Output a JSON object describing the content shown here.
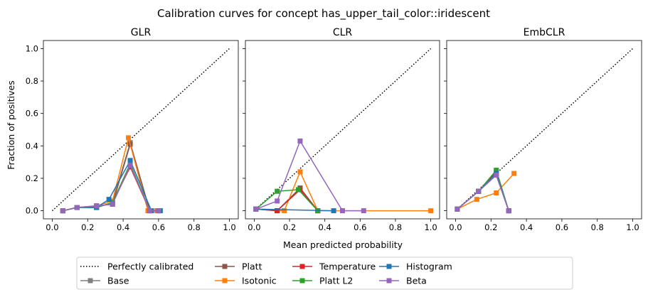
{
  "figure": {
    "title": "Calibration curves for concept has_upper_tail_color::iridescent",
    "xlabel": "Mean predicted probability",
    "ylabel": "Fraction of positives"
  },
  "legend": {
    "placement": "bottom-center",
    "entries": [
      {
        "name": "Perfectly calibrated",
        "color": "#000000",
        "style": "dotted",
        "marker": "none"
      },
      {
        "name": "Base",
        "color": "#7f7f7f",
        "style": "solid",
        "marker": "square"
      },
      {
        "name": "Platt",
        "color": "#8c564b",
        "style": "solid",
        "marker": "square"
      },
      {
        "name": "Isotonic",
        "color": "#ff7f0e",
        "style": "solid",
        "marker": "square"
      },
      {
        "name": "Temperature",
        "color": "#d62728",
        "style": "solid",
        "marker": "square"
      },
      {
        "name": "Platt L2",
        "color": "#2ca02c",
        "style": "solid",
        "marker": "square"
      },
      {
        "name": "Histogram",
        "color": "#1f77b4",
        "style": "solid",
        "marker": "square"
      },
      {
        "name": "Beta",
        "color": "#9467bd",
        "style": "solid",
        "marker": "square"
      }
    ]
  },
  "chart_data": [
    {
      "type": "line",
      "title": "GLR",
      "xlim": [
        -0.05,
        1.05
      ],
      "ylim": [
        -0.05,
        1.05
      ],
      "xticks": [
        "0.0",
        "0.2",
        "0.4",
        "0.6",
        "0.8",
        "1.0"
      ],
      "yticks": [
        "0.0",
        "0.2",
        "0.4",
        "0.6",
        "0.8",
        "1.0"
      ],
      "grid": false,
      "series": [
        {
          "name": "Perfectly calibrated",
          "x": [
            0,
            1
          ],
          "y": [
            0,
            1
          ]
        },
        {
          "name": "Base",
          "x": [
            0.06,
            0.14,
            0.25,
            0.34,
            0.44,
            0.55,
            0.6
          ],
          "y": [
            0.0,
            0.02,
            0.02,
            0.05,
            0.42,
            0.0,
            0.0
          ]
        },
        {
          "name": "Platt",
          "x": [
            0.06,
            0.14,
            0.25,
            0.34,
            0.44,
            0.55,
            0.6
          ],
          "y": [
            0.0,
            0.02,
            0.03,
            0.04,
            0.41,
            0.0,
            0.0
          ]
        },
        {
          "name": "Isotonic",
          "x": [
            0.06,
            0.14,
            0.25,
            0.34,
            0.43,
            0.54,
            0.59
          ],
          "y": [
            0.0,
            0.02,
            0.03,
            0.06,
            0.45,
            0.0,
            0.0
          ]
        },
        {
          "name": "Temperature",
          "x": [
            0.06,
            0.14,
            0.25,
            0.34,
            0.44,
            0.55,
            0.6
          ],
          "y": [
            0.0,
            0.02,
            0.02,
            0.05,
            0.27,
            0.0,
            0.0
          ]
        },
        {
          "name": "Platt L2",
          "x": [
            0.06,
            0.14,
            0.25,
            0.34,
            0.44,
            0.55,
            0.6
          ],
          "y": [
            0.0,
            0.02,
            0.02,
            0.05,
            0.29,
            0.0,
            0.0
          ]
        },
        {
          "name": "Histogram",
          "x": [
            0.06,
            0.14,
            0.25,
            0.32,
            0.44,
            0.56,
            0.61
          ],
          "y": [
            0.0,
            0.02,
            0.02,
            0.07,
            0.31,
            0.0,
            0.0
          ]
        },
        {
          "name": "Beta",
          "x": [
            0.06,
            0.14,
            0.25,
            0.34,
            0.44,
            0.55,
            0.6
          ],
          "y": [
            0.0,
            0.02,
            0.03,
            0.04,
            0.28,
            0.0,
            0.0
          ]
        }
      ]
    },
    {
      "type": "line",
      "title": "CLR",
      "xlim": [
        -0.05,
        1.05
      ],
      "ylim": [
        -0.05,
        1.05
      ],
      "xticks": [
        "0.0",
        "0.2",
        "0.4",
        "0.6",
        "0.8",
        "1.0"
      ],
      "yticks": [],
      "grid": false,
      "series": [
        {
          "name": "Perfectly calibrated",
          "x": [
            0,
            1
          ],
          "y": [
            0,
            1
          ]
        },
        {
          "name": "Base",
          "x": [
            0.01,
            0.13,
            0.26,
            0.36
          ],
          "y": [
            0.01,
            0.0,
            0.14,
            0.0
          ]
        },
        {
          "name": "Platt",
          "x": [
            0.01,
            0.13,
            0.26,
            0.36
          ],
          "y": [
            0.01,
            0.0,
            0.14,
            0.0
          ]
        },
        {
          "name": "Isotonic",
          "x": [
            0.01,
            0.17,
            0.26,
            0.36,
            0.5,
            1.0
          ],
          "y": [
            0.01,
            0.0,
            0.24,
            0.0,
            0.0,
            0.0
          ]
        },
        {
          "name": "Temperature",
          "x": [
            0.01,
            0.13,
            0.26,
            0.36
          ],
          "y": [
            0.01,
            0.0,
            0.13,
            0.0
          ]
        },
        {
          "name": "Platt L2",
          "x": [
            0.01,
            0.13,
            0.25,
            0.36
          ],
          "y": [
            0.01,
            0.12,
            0.13,
            0.0
          ]
        },
        {
          "name": "Histogram",
          "x": [
            0.01,
            0.45
          ],
          "y": [
            0.01,
            0.0
          ]
        },
        {
          "name": "Beta",
          "x": [
            0.01,
            0.13,
            0.26,
            0.5,
            0.62
          ],
          "y": [
            0.01,
            0.06,
            0.43,
            0.0,
            0.0
          ]
        }
      ]
    },
    {
      "type": "line",
      "title": "EmbCLR",
      "xlim": [
        -0.05,
        1.05
      ],
      "ylim": [
        -0.05,
        1.05
      ],
      "xticks": [
        "0.0",
        "0.2",
        "0.4",
        "0.6",
        "0.8",
        "1.0"
      ],
      "yticks": [],
      "grid": false,
      "series": [
        {
          "name": "Perfectly calibrated",
          "x": [
            0,
            1
          ],
          "y": [
            0,
            1
          ]
        },
        {
          "name": "Base",
          "x": [
            0.01,
            0.13,
            0.23,
            0.3
          ],
          "y": [
            0.01,
            0.12,
            0.22,
            0.0
          ]
        },
        {
          "name": "Platt",
          "x": [
            0.01,
            0.13,
            0.23,
            0.3
          ],
          "y": [
            0.01,
            0.12,
            0.22,
            0.0
          ]
        },
        {
          "name": "Isotonic",
          "x": [
            0.01,
            0.12,
            0.23,
            0.33
          ],
          "y": [
            0.01,
            0.07,
            0.11,
            0.23
          ]
        },
        {
          "name": "Temperature",
          "x": [
            0.01,
            0.13,
            0.23,
            0.3
          ],
          "y": [
            0.01,
            0.12,
            0.24,
            0.0
          ]
        },
        {
          "name": "Platt L2",
          "x": [
            0.01,
            0.13,
            0.23,
            0.3
          ],
          "y": [
            0.01,
            0.12,
            0.25,
            0.0
          ]
        },
        {
          "name": "Histogram",
          "x": [
            0.01,
            0.13,
            0.23,
            0.3
          ],
          "y": [
            0.01,
            0.12,
            0.23,
            0.0
          ]
        },
        {
          "name": "Beta",
          "x": [
            0.01,
            0.13,
            0.23,
            0.3
          ],
          "y": [
            0.01,
            0.12,
            0.22,
            0.0
          ]
        }
      ]
    }
  ]
}
